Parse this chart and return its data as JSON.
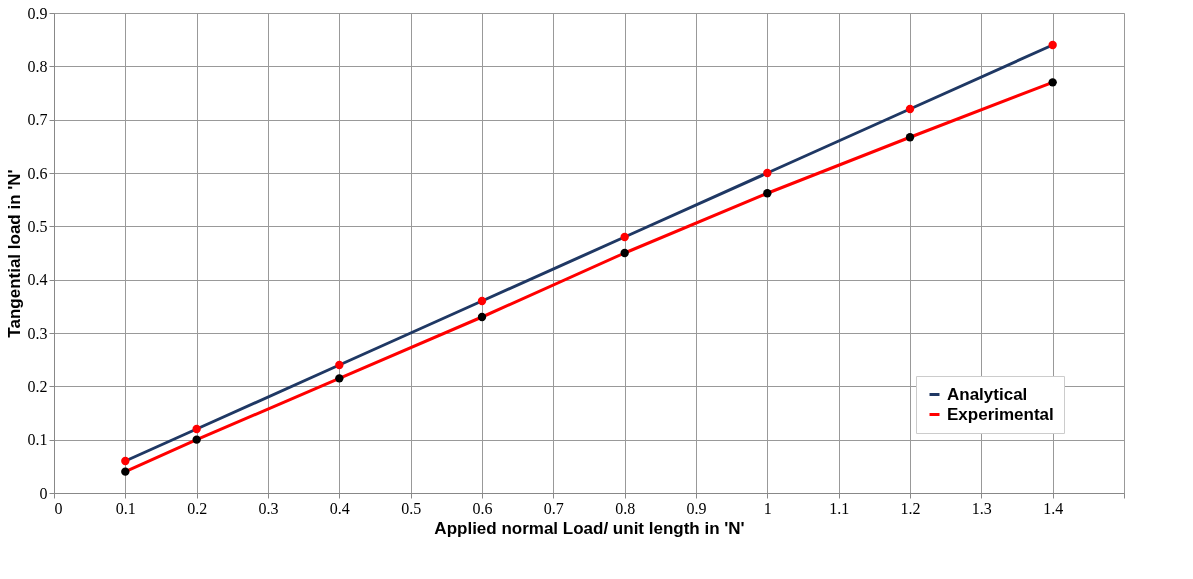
{
  "chart_data": {
    "type": "line",
    "xlabel": "Applied normal  Load/ unit length in 'N'",
    "ylabel": "Tangential load in  'N'",
    "x": [
      0.1,
      0.2,
      0.4,
      0.6,
      0.8,
      1.0,
      1.2,
      1.4
    ],
    "series": [
      {
        "name": "Analytical",
        "color": "#1f3864",
        "colors": [
          "#ff0000",
          "#ff0000",
          "#ff0000",
          "#ff0000",
          "#ff0000",
          "#ff0000",
          "#ff0000",
          "#ff0000"
        ],
        "values": [
          0.06,
          0.12,
          0.24,
          0.36,
          0.48,
          0.6,
          0.72,
          0.84
        ]
      },
      {
        "name": "Experimental",
        "color": "#ff0000",
        "colors": [
          "#000000",
          "#000000",
          "#000000",
          "#000000",
          "#000000",
          "#000000",
          "#000000",
          "#000000"
        ],
        "values": [
          0.04,
          0.1,
          0.215,
          0.33,
          0.45,
          0.562,
          0.667,
          0.77
        ]
      }
    ],
    "xlim": [
      0,
      1.5
    ],
    "xticks": [
      0,
      0.1,
      0.2,
      0.3,
      0.4,
      0.5,
      0.6,
      0.7,
      0.8,
      0.9,
      1,
      1.1,
      1.2,
      1.3,
      1.4,
      {
        "value": 1.5,
        "label": null
      }
    ],
    "ylim": [
      0,
      0.9
    ],
    "yticks": [
      0,
      0.1,
      0.2,
      0.3,
      0.4,
      0.5,
      0.6,
      0.7,
      0.8,
      0.9
    ],
    "grid": true,
    "legend": "bottom right",
    "marker": "circle",
    "line_style": "solid"
  }
}
